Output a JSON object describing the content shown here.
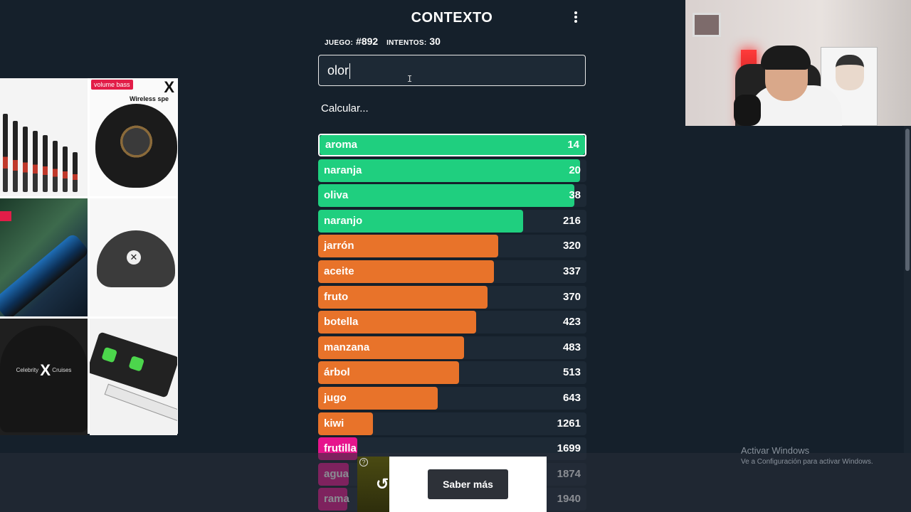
{
  "header": {
    "title": "CONTEXTO",
    "game_label": "JUEGO:",
    "game_value": "#892",
    "attempts_label": "INTENTOS:",
    "attempts_value": "30"
  },
  "input": {
    "value": "olor"
  },
  "status": {
    "calculating": "Calcular..."
  },
  "colors": {
    "green": "#1fcf7f",
    "orange": "#e8732a",
    "pink": "#e6148c",
    "row_bg": "#1d2935"
  },
  "guesses": [
    {
      "word": "aroma",
      "rank": "14",
      "color": "green",
      "fill": 1.0,
      "current": true
    },
    {
      "word": "naranja",
      "rank": "20",
      "color": "green",
      "fill": 0.975
    },
    {
      "word": "oliva",
      "rank": "38",
      "color": "green",
      "fill": 0.955
    },
    {
      "word": "naranjo",
      "rank": "216",
      "color": "green",
      "fill": 0.765
    },
    {
      "word": "jarrón",
      "rank": "320",
      "color": "orange",
      "fill": 0.67
    },
    {
      "word": "aceite",
      "rank": "337",
      "color": "orange",
      "fill": 0.655
    },
    {
      "word": "fruto",
      "rank": "370",
      "color": "orange",
      "fill": 0.63
    },
    {
      "word": "botella",
      "rank": "423",
      "color": "orange",
      "fill": 0.59
    },
    {
      "word": "manzana",
      "rank": "483",
      "color": "orange",
      "fill": 0.545
    },
    {
      "word": "árbol",
      "rank": "513",
      "color": "orange",
      "fill": 0.525
    },
    {
      "word": "jugo",
      "rank": "643",
      "color": "orange",
      "fill": 0.445
    },
    {
      "word": "kiwi",
      "rank": "1261",
      "color": "orange",
      "fill": 0.205
    },
    {
      "word": "frutilla",
      "rank": "1699",
      "color": "pink",
      "fill": 0.145
    },
    {
      "word": "agua",
      "rank": "1874",
      "color": "pink",
      "fill": 0.115
    },
    {
      "word": "rama",
      "rank": "1940",
      "color": "pink",
      "fill": 0.11
    }
  ],
  "ads": {
    "speaker_badge": "volume bass",
    "speaker_caption": "Wireless spe",
    "close_glyph": "X",
    "cap_logo": "✕",
    "cruise_left": "Celebrity",
    "cruise_x": "X",
    "cruise_right": "Cruises",
    "help_glyph": "?",
    "replay_glyph": "↺",
    "learn_more": "Saber más"
  },
  "watermark": {
    "line1": "Activar Windows",
    "line2": "Ve a Configuración para activar Windows."
  }
}
